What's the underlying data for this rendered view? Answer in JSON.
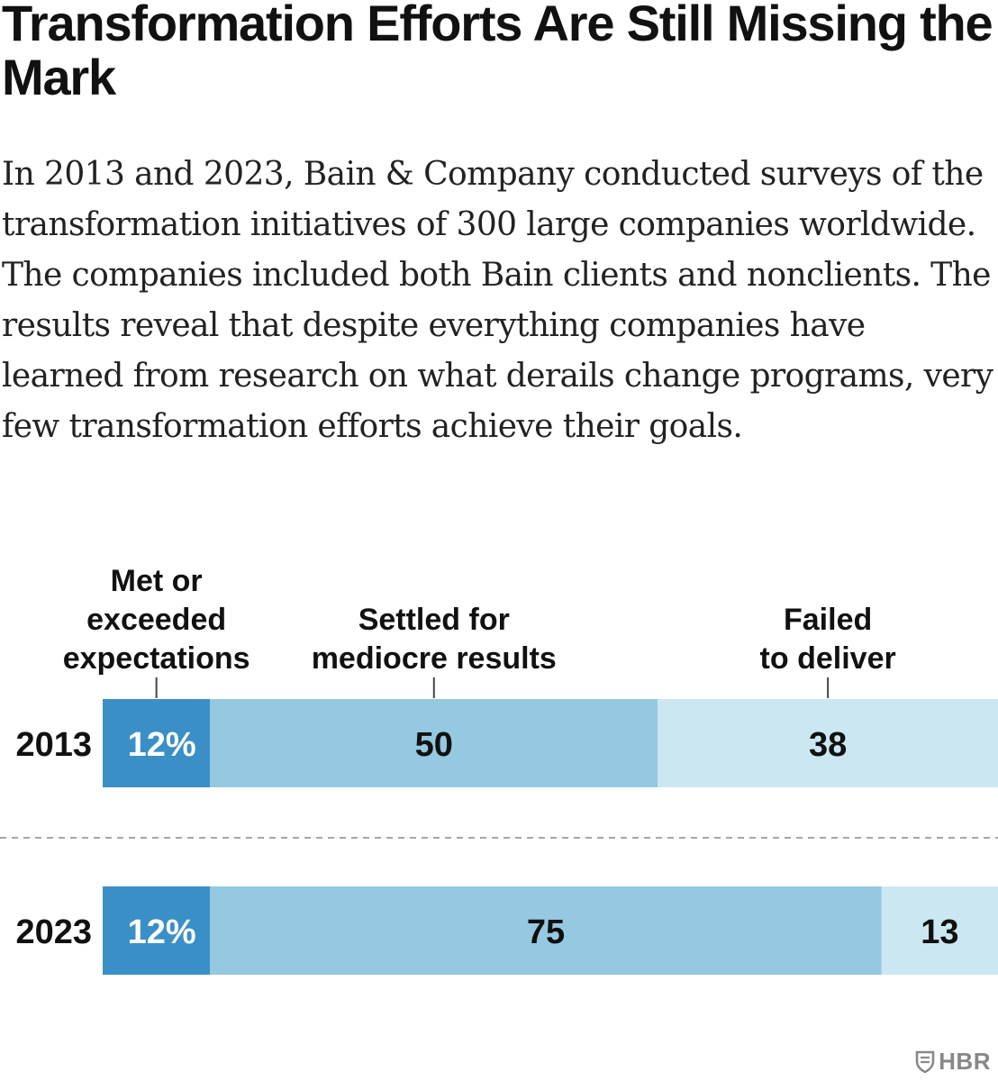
{
  "title": "Transformation Efforts Are Still Missing the Mark",
  "subtitle": "In 2013 and 2023, Bain & Company conducted surveys of the transformation initiatives of 300 large companies worldwide. The companies included both Bain clients and nonclients. The results reveal that despite everything companies have learned from research on what derails change programs, very few transformation efforts achieve their goals.",
  "logo": {
    "text": "HBR",
    "icon": "shield-icon"
  },
  "colors": {
    "met": "#3a8fc6",
    "settled": "#95c9e1",
    "failed": "#cbe8f2",
    "met_text": "#ffffff",
    "other_text": "#111111",
    "divider": "#888888"
  },
  "chart_data": {
    "type": "bar",
    "orientation": "horizontal",
    "stacked": true,
    "categories": [
      "2013",
      "2023"
    ],
    "xlim": [
      0,
      100
    ],
    "series": [
      {
        "name": "Met or exceeded expectations",
        "values": [
          12,
          12
        ],
        "labels": [
          "12%",
          "12%"
        ]
      },
      {
        "name": "Settled for mediocre results",
        "values": [
          50,
          75
        ],
        "labels": [
          "50",
          "75"
        ]
      },
      {
        "name": "Failed to deliver",
        "values": [
          38,
          13
        ],
        "labels": [
          "38",
          "13"
        ]
      }
    ],
    "series_label_lines": [
      [
        "Met or",
        "exceeded",
        "expectations"
      ],
      [
        "Settled for",
        "mediocre results"
      ],
      [
        "Failed",
        "to deliver"
      ]
    ],
    "legend_placement": "top",
    "grid": false
  }
}
